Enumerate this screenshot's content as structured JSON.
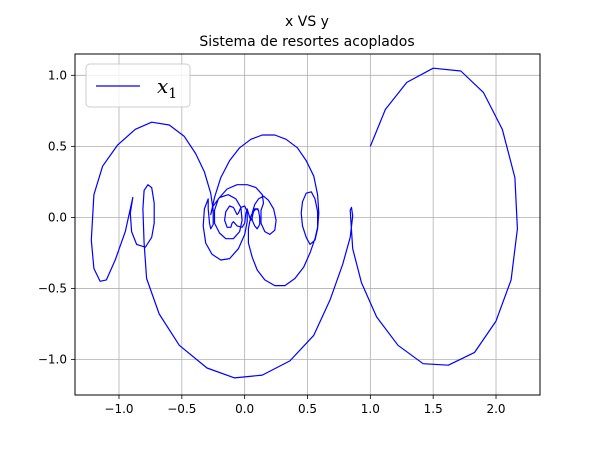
{
  "chart_data": {
    "type": "line",
    "title": "x VS y",
    "subtitle": "Sistema de resortes acoplados",
    "xlabel": "",
    "ylabel": "",
    "xlim": [
      -1.35,
      2.35
    ],
    "ylim": [
      -1.25,
      1.15
    ],
    "xticks": [
      -1.0,
      -0.5,
      0.0,
      0.5,
      1.0,
      1.5,
      2.0
    ],
    "yticks": [
      -1.0,
      -0.5,
      0.0,
      0.5,
      1.0
    ],
    "xtick_labels": [
      "−1.0",
      "−0.5",
      "0.0",
      "0.5",
      "1.0",
      "1.5",
      "2.0"
    ],
    "ytick_labels": [
      "−1.0",
      "−0.5",
      "0.0",
      "0.5",
      "1.0"
    ],
    "grid": true,
    "legend_position": "top-left",
    "series": [
      {
        "name": "x₁",
        "legend_base": "x",
        "legend_sub": "1",
        "color": "#0000ff",
        "points": [
          [
            1.0,
            0.5
          ],
          [
            1.12,
            0.76
          ],
          [
            1.29,
            0.95
          ],
          [
            1.5,
            1.05
          ],
          [
            1.72,
            1.03
          ],
          [
            1.9,
            0.88
          ],
          [
            2.05,
            0.62
          ],
          [
            2.15,
            0.28
          ],
          [
            2.17,
            -0.08
          ],
          [
            2.12,
            -0.44
          ],
          [
            2.0,
            -0.73
          ],
          [
            1.83,
            -0.95
          ],
          [
            1.62,
            -1.04
          ],
          [
            1.42,
            -1.03
          ],
          [
            1.22,
            -0.9
          ],
          [
            1.05,
            -0.7
          ],
          [
            0.93,
            -0.46
          ],
          [
            0.86,
            -0.22
          ],
          [
            0.84,
            0.05
          ],
          [
            0.85,
            0.07
          ],
          [
            0.86,
            0.01
          ],
          [
            0.84,
            -0.14
          ],
          [
            0.78,
            -0.33
          ],
          [
            0.68,
            -0.58
          ],
          [
            0.55,
            -0.83
          ],
          [
            0.36,
            -1.01
          ],
          [
            0.14,
            -1.11
          ],
          [
            -0.08,
            -1.13
          ],
          [
            -0.3,
            -1.06
          ],
          [
            -0.52,
            -0.9
          ],
          [
            -0.68,
            -0.68
          ],
          [
            -0.78,
            -0.43
          ],
          [
            -0.8,
            -0.18
          ],
          [
            -0.81,
            0.06
          ],
          [
            -0.8,
            0.19
          ],
          [
            -0.77,
            0.23
          ],
          [
            -0.74,
            0.21
          ],
          [
            -0.72,
            0.1
          ],
          [
            -0.72,
            -0.04
          ],
          [
            -0.74,
            -0.14
          ],
          [
            -0.79,
            -0.21
          ],
          [
            -0.86,
            -0.19
          ],
          [
            -0.9,
            -0.1
          ],
          [
            -0.91,
            0.03
          ],
          [
            -0.89,
            0.14
          ],
          [
            -0.95,
            -0.1
          ],
          [
            -1.03,
            -0.3
          ],
          [
            -1.1,
            -0.44
          ],
          [
            -1.15,
            -0.45
          ],
          [
            -1.2,
            -0.36
          ],
          [
            -1.22,
            -0.16
          ],
          [
            -1.2,
            0.16
          ],
          [
            -1.13,
            0.36
          ],
          [
            -1.01,
            0.51
          ],
          [
            -0.87,
            0.62
          ],
          [
            -0.74,
            0.67
          ],
          [
            -0.6,
            0.65
          ],
          [
            -0.48,
            0.57
          ],
          [
            -0.39,
            0.45
          ],
          [
            -0.32,
            0.32
          ],
          [
            -0.27,
            0.17
          ],
          [
            -0.25,
            0.05
          ],
          [
            -0.25,
            -0.05
          ],
          [
            -0.27,
            -0.08
          ],
          [
            -0.28,
            -0.04
          ],
          [
            -0.29,
            0.06
          ],
          [
            -0.29,
            0.13
          ],
          [
            -0.32,
            0.06
          ],
          [
            -0.33,
            -0.06
          ],
          [
            -0.31,
            -0.18
          ],
          [
            -0.26,
            -0.26
          ],
          [
            -0.19,
            -0.3
          ],
          [
            -0.12,
            -0.29
          ],
          [
            -0.05,
            -0.22
          ],
          [
            0.0,
            -0.12
          ],
          [
            0.02,
            -0.03
          ],
          [
            0.02,
            0.04
          ],
          [
            0.0,
            0.08
          ],
          [
            -0.03,
            0.07
          ],
          [
            -0.05,
            0.03
          ],
          [
            -0.06,
            0.02
          ],
          [
            -0.09,
            0.07
          ],
          [
            -0.12,
            0.08
          ],
          [
            -0.15,
            0.04
          ],
          [
            -0.16,
            -0.02
          ],
          [
            -0.14,
            -0.07
          ],
          [
            -0.11,
            -0.07
          ],
          [
            -0.1,
            -0.04
          ],
          [
            -0.09,
            -0.03
          ],
          [
            -0.06,
            -0.06
          ],
          [
            -0.02,
            -0.07
          ],
          [
            0.0,
            -0.04
          ],
          [
            0.01,
            0.03
          ],
          [
            0.02,
            0.06
          ],
          [
            0.03,
            0.03
          ],
          [
            0.04,
            0.0
          ],
          [
            0.05,
            -0.02
          ],
          [
            0.06,
            0.0
          ],
          [
            0.07,
            0.04
          ],
          [
            0.09,
            0.06
          ],
          [
            0.11,
            0.05
          ],
          [
            0.12,
            0.0
          ],
          [
            0.12,
            -0.05
          ],
          [
            0.1,
            -0.08
          ],
          [
            0.08,
            -0.06
          ],
          [
            0.06,
            -0.02
          ],
          [
            0.06,
            0.03
          ],
          [
            0.08,
            0.09
          ],
          [
            0.11,
            0.13
          ],
          [
            0.15,
            0.15
          ],
          [
            0.19,
            0.12
          ],
          [
            0.23,
            0.06
          ],
          [
            0.25,
            -0.02
          ],
          [
            0.24,
            -0.09
          ],
          [
            0.2,
            -0.12
          ],
          [
            0.16,
            -0.1
          ],
          [
            0.13,
            -0.04
          ],
          [
            0.13,
            0.05
          ],
          [
            0.15,
            0.1
          ],
          [
            0.14,
            0.16
          ],
          [
            0.09,
            0.21
          ],
          [
            0.02,
            0.23
          ],
          [
            -0.06,
            0.23
          ],
          [
            -0.14,
            0.2
          ],
          [
            -0.21,
            0.13
          ],
          [
            -0.24,
            0.05
          ],
          [
            -0.24,
            -0.04
          ],
          [
            -0.2,
            -0.11
          ],
          [
            -0.15,
            -0.15
          ],
          [
            -0.09,
            -0.15
          ],
          [
            -0.04,
            -0.1
          ],
          [
            -0.02,
            -0.02
          ],
          [
            -0.03,
            0.07
          ],
          [
            -0.07,
            0.13
          ],
          [
            -0.13,
            0.16
          ],
          [
            -0.2,
            0.14
          ],
          [
            -0.25,
            0.08
          ],
          [
            -0.27,
            0.02
          ],
          [
            -0.24,
            0.14
          ],
          [
            -0.19,
            0.28
          ],
          [
            -0.12,
            0.4
          ],
          [
            -0.04,
            0.49
          ],
          [
            0.05,
            0.55
          ],
          [
            0.14,
            0.58
          ],
          [
            0.24,
            0.58
          ],
          [
            0.33,
            0.55
          ],
          [
            0.42,
            0.49
          ],
          [
            0.49,
            0.4
          ],
          [
            0.55,
            0.29
          ],
          [
            0.58,
            0.16
          ],
          [
            0.59,
            0.03
          ],
          [
            0.58,
            -0.08
          ],
          [
            0.56,
            -0.16
          ],
          [
            0.52,
            -0.19
          ],
          [
            0.49,
            -0.14
          ],
          [
            0.46,
            -0.06
          ],
          [
            0.45,
            0.03
          ],
          [
            0.46,
            0.11
          ],
          [
            0.49,
            0.17
          ],
          [
            0.53,
            0.18
          ],
          [
            0.56,
            0.13
          ],
          [
            0.58,
            0.04
          ],
          [
            0.58,
            -0.07
          ],
          [
            0.56,
            -0.15
          ],
          [
            0.52,
            -0.25
          ],
          [
            0.47,
            -0.35
          ],
          [
            0.4,
            -0.43
          ],
          [
            0.32,
            -0.48
          ],
          [
            0.24,
            -0.48
          ],
          [
            0.16,
            -0.44
          ],
          [
            0.1,
            -0.37
          ],
          [
            0.06,
            -0.28
          ],
          [
            0.03,
            -0.18
          ],
          [
            0.03,
            -0.08
          ],
          [
            0.05,
            0.01
          ],
          [
            0.08,
            0.06
          ],
          [
            0.11,
            0.06
          ]
        ]
      }
    ]
  }
}
